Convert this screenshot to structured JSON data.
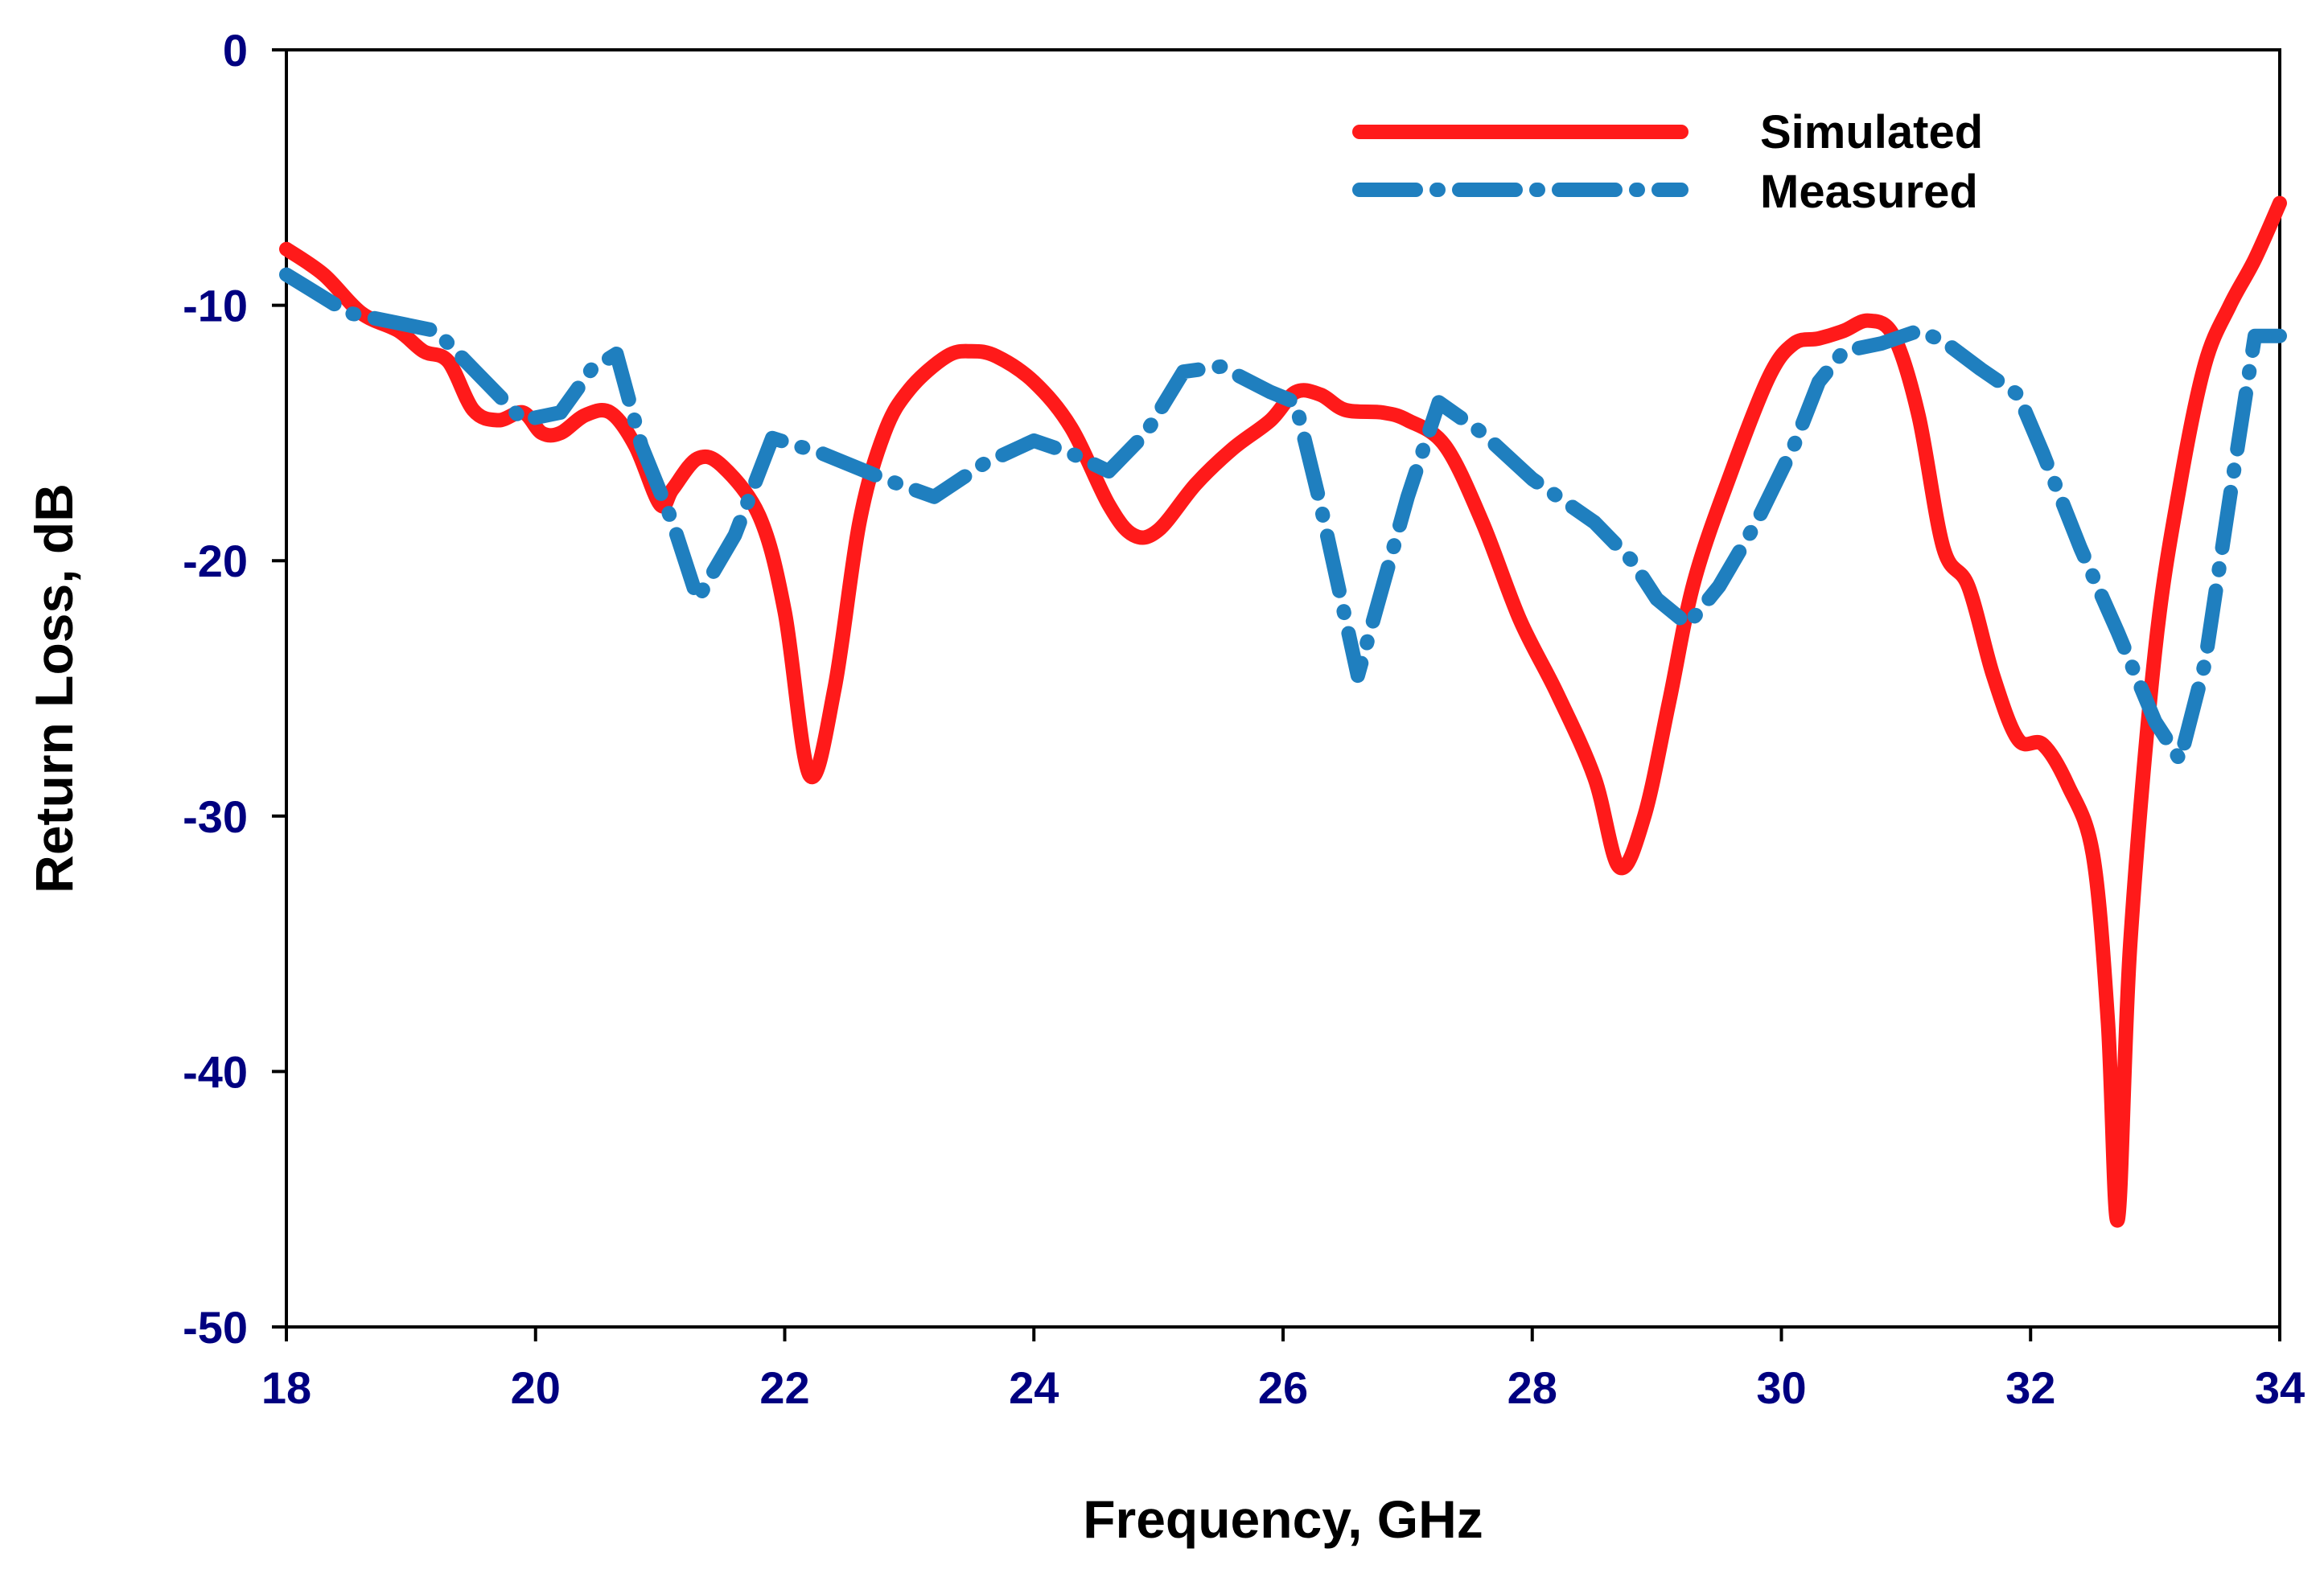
{
  "chart_data": {
    "type": "line",
    "title": "",
    "xlabel": "Frequency, GHz",
    "ylabel": "Return Loss, dB",
    "xlim": [
      18,
      34
    ],
    "ylim": [
      -50,
      0
    ],
    "xticks": [
      18,
      20,
      22,
      24,
      26,
      28,
      30,
      32,
      34
    ],
    "yticks": [
      0,
      -10,
      -20,
      -30,
      -40,
      -50
    ],
    "grid": false,
    "legend_position": "top-right",
    "series": [
      {
        "name": "Simulated",
        "color": "#ff1a1a",
        "style": "solid",
        "x": [
          18,
          18.3,
          18.6,
          18.9,
          19.1,
          19.3,
          19.5,
          19.7,
          19.9,
          20.05,
          20.2,
          20.4,
          20.6,
          20.8,
          21.0,
          21.1,
          21.3,
          21.5,
          21.8,
          22.0,
          22.2,
          22.4,
          22.6,
          22.8,
          23.0,
          23.3,
          23.5,
          23.7,
          24.0,
          24.3,
          24.6,
          24.8,
          25.0,
          25.3,
          25.6,
          25.9,
          26.1,
          26.3,
          26.5,
          26.8,
          27.0,
          27.3,
          27.6,
          27.9,
          28.2,
          28.5,
          28.7,
          28.9,
          29.1,
          29.3,
          29.6,
          29.9,
          30.1,
          30.3,
          30.5,
          30.7,
          30.9,
          31.1,
          31.3,
          31.5,
          31.7,
          31.9,
          32.1,
          32.3,
          32.5,
          32.62,
          32.7,
          32.8,
          33.0,
          33.2,
          33.4,
          33.6,
          33.8,
          34.0
        ],
        "values": [
          -7.8,
          -8.8,
          -10.3,
          -11.0,
          -11.8,
          -12.2,
          -14.1,
          -14.5,
          -14.2,
          -15.0,
          -15.0,
          -14.3,
          -14.2,
          -15.5,
          -17.8,
          -17.2,
          -16.0,
          -16.3,
          -18.3,
          -22.0,
          -28.4,
          -25.0,
          -18.5,
          -15.0,
          -13.3,
          -12.0,
          -11.8,
          -12.0,
          -13.0,
          -14.8,
          -17.8,
          -19.0,
          -18.8,
          -17.0,
          -15.6,
          -14.5,
          -13.4,
          -13.5,
          -14.1,
          -14.2,
          -14.5,
          -15.5,
          -18.5,
          -22.3,
          -25.2,
          -28.5,
          -32.0,
          -30.0,
          -25.5,
          -20.8,
          -16.5,
          -12.8,
          -11.5,
          -11.3,
          -11.0,
          -10.6,
          -11.2,
          -14.3,
          -19.5,
          -21.0,
          -24.5,
          -27.0,
          -27.2,
          -28.8,
          -31.5,
          -38.0,
          -45.8,
          -35.0,
          -23.5,
          -17.0,
          -12.3,
          -10.0,
          -8.2,
          -6.0
        ]
      },
      {
        "name": "Measured",
        "color": "#1f7fbf",
        "style": "dash-dot",
        "x": [
          18,
          18.5,
          19.2,
          19.5,
          19.9,
          20.2,
          20.45,
          20.65,
          20.85,
          21.1,
          21.3,
          21.6,
          21.9,
          22.3,
          22.8,
          23.2,
          23.6,
          24.0,
          24.3,
          24.6,
          24.9,
          25.2,
          25.5,
          25.9,
          26.1,
          26.3,
          26.6,
          26.8,
          27.0,
          27.25,
          27.6,
          28.0,
          28.5,
          28.8,
          29.0,
          29.25,
          29.5,
          29.8,
          30.1,
          30.3,
          30.5,
          30.8,
          31.1,
          31.3,
          31.6,
          31.9,
          32.1,
          32.4,
          32.7,
          33.0,
          33.2,
          33.4,
          33.6,
          33.8,
          34.0
        ],
        "values": [
          -8.8,
          -10.3,
          -11.0,
          -12.5,
          -14.5,
          -14.2,
          -12.5,
          -11.9,
          -15.5,
          -18.5,
          -21.5,
          -19.0,
          -15.2,
          -15.8,
          -16.8,
          -17.5,
          -16.2,
          -15.3,
          -15.8,
          -16.5,
          -15.0,
          -12.6,
          -12.4,
          -13.4,
          -13.8,
          -17.8,
          -24.5,
          -21.0,
          -17.5,
          -13.8,
          -15.0,
          -16.8,
          -18.5,
          -20.0,
          -21.5,
          -22.5,
          -21.0,
          -18.5,
          -15.5,
          -13.0,
          -11.8,
          -11.5,
          -11.0,
          -11.4,
          -12.5,
          -13.5,
          -15.8,
          -19.5,
          -22.8,
          -26.3,
          -27.8,
          -24.0,
          -17.5,
          -11.2,
          -11.2
        ]
      }
    ]
  }
}
